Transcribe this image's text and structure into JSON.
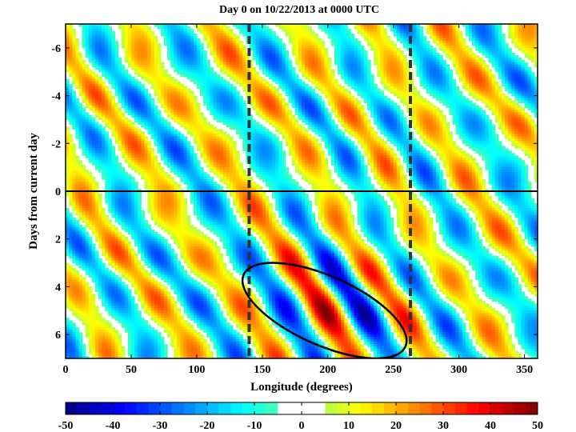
{
  "chart_data": {
    "type": "heatmap",
    "title": "Day 0 on 10/22/2013 at 0000 UTC",
    "xlabel": "Longitude (degrees)",
    "ylabel": "Days from current day",
    "xlim": [
      0,
      360
    ],
    "ylim": [
      -7,
      7
    ],
    "y_axis_inverted": true,
    "x_ticks": [
      0,
      50,
      100,
      150,
      200,
      250,
      300,
      350
    ],
    "y_ticks": [
      -6,
      -4,
      -2,
      0,
      2,
      4,
      6
    ],
    "colorbar": {
      "min": -50,
      "max": 50,
      "ticks": [
        -50,
        -40,
        -30,
        -20,
        -10,
        0,
        10,
        20,
        30,
        40,
        50
      ],
      "blank_range": [
        -5,
        5
      ]
    },
    "reference_lines": {
      "vertical_dashed_longitudes": [
        140,
        263
      ],
      "horizontal_day": 0
    },
    "highlighted_feature": {
      "shape": "ellipse",
      "longitude_range": [
        130,
        265
      ],
      "day_range": [
        3,
        7
      ]
    },
    "contour_field": {
      "bands_description": "diagonal alternating positive/negative anomaly bands tilting from upper-left to lower-right",
      "phase_speed_deg_per_day": 12,
      "wavelength_deg": 60,
      "strong_packet": {
        "center_longitude": 200,
        "center_day": 5,
        "peak_abs_value": 50
      }
    }
  }
}
